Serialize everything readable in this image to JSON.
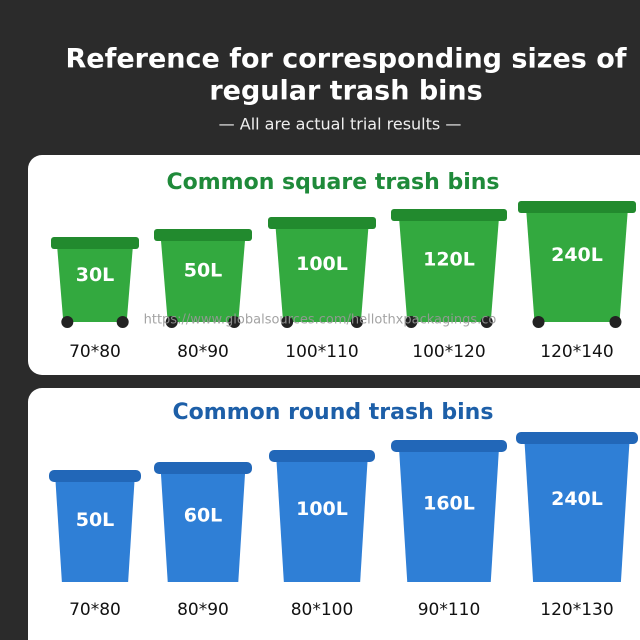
{
  "header": {
    "title_lines": [
      "Reference for corresponding sizes of",
      "regular trash bins"
    ],
    "subtitle": "— All are actual trial results —"
  },
  "watermark": "https://www.globalsources.com/hellothxpackagings.co",
  "sections": [
    {
      "title": "Common square trash bins",
      "bins": [
        {
          "capacity": "30L",
          "size": "70*80"
        },
        {
          "capacity": "50L",
          "size": "80*90"
        },
        {
          "capacity": "100L",
          "size": "100*110"
        },
        {
          "capacity": "120L",
          "size": "100*120"
        },
        {
          "capacity": "240L",
          "size": "120*140"
        }
      ]
    },
    {
      "title": "Common round trash bins",
      "bins": [
        {
          "capacity": "50L",
          "size": "70*80"
        },
        {
          "capacity": "60L",
          "size": "80*90"
        },
        {
          "capacity": "100L",
          "size": "80*100"
        },
        {
          "capacity": "160L",
          "size": "90*110"
        },
        {
          "capacity": "240L",
          "size": "120*130"
        }
      ]
    }
  ]
}
